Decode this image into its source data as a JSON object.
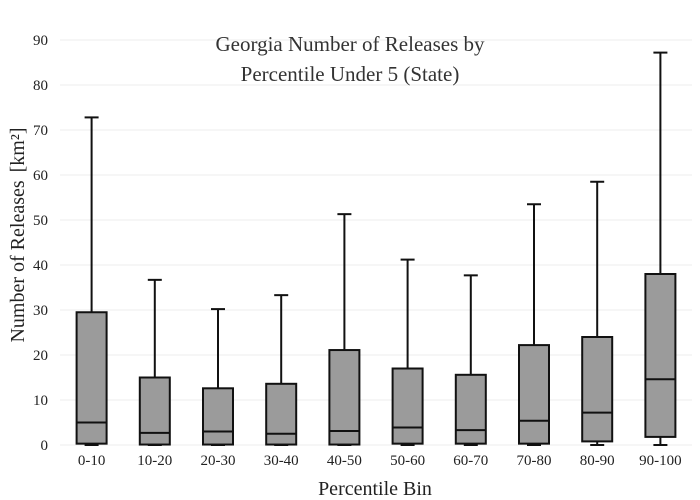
{
  "chart_data": {
    "type": "box",
    "title": [
      "Georgia Number of Releases by",
      "Percentile Under 5 (State)"
    ],
    "xlabel": "Percentile Bin",
    "ylabel": "Number of Releases",
    "ylabel_unit": "[km²]",
    "ylim": [
      0,
      90
    ],
    "yticks": [
      0,
      10,
      20,
      30,
      40,
      50,
      60,
      70,
      80,
      90
    ],
    "grid": true,
    "colors": {
      "box_fill": "#9b9b9b",
      "stroke": "#111111",
      "grid": "#ececec"
    },
    "categories": [
      "0-10",
      "10-20",
      "20-30",
      "30-40",
      "40-50",
      "50-60",
      "60-70",
      "70-80",
      "80-90",
      "90-100"
    ],
    "boxes": [
      {
        "min": 0,
        "q1": 0.3,
        "median": 5.0,
        "q3": 29.5,
        "max": 72.8
      },
      {
        "min": 0,
        "q1": 0.1,
        "median": 2.7,
        "q3": 15.0,
        "max": 36.7
      },
      {
        "min": 0,
        "q1": 0.1,
        "median": 3.0,
        "q3": 12.6,
        "max": 30.2
      },
      {
        "min": 0,
        "q1": 0.1,
        "median": 2.5,
        "q3": 13.6,
        "max": 33.3
      },
      {
        "min": 0,
        "q1": 0.1,
        "median": 3.1,
        "q3": 21.1,
        "max": 51.3
      },
      {
        "min": 0,
        "q1": 0.3,
        "median": 3.9,
        "q3": 17.0,
        "max": 41.2
      },
      {
        "min": 0,
        "q1": 0.3,
        "median": 3.3,
        "q3": 15.6,
        "max": 37.7
      },
      {
        "min": 0,
        "q1": 0.3,
        "median": 5.4,
        "q3": 22.2,
        "max": 53.5
      },
      {
        "min": 0,
        "q1": 0.8,
        "median": 7.2,
        "q3": 24.0,
        "max": 58.5
      },
      {
        "min": 0,
        "q1": 1.8,
        "median": 14.6,
        "q3": 38.0,
        "max": 87.2
      }
    ]
  }
}
